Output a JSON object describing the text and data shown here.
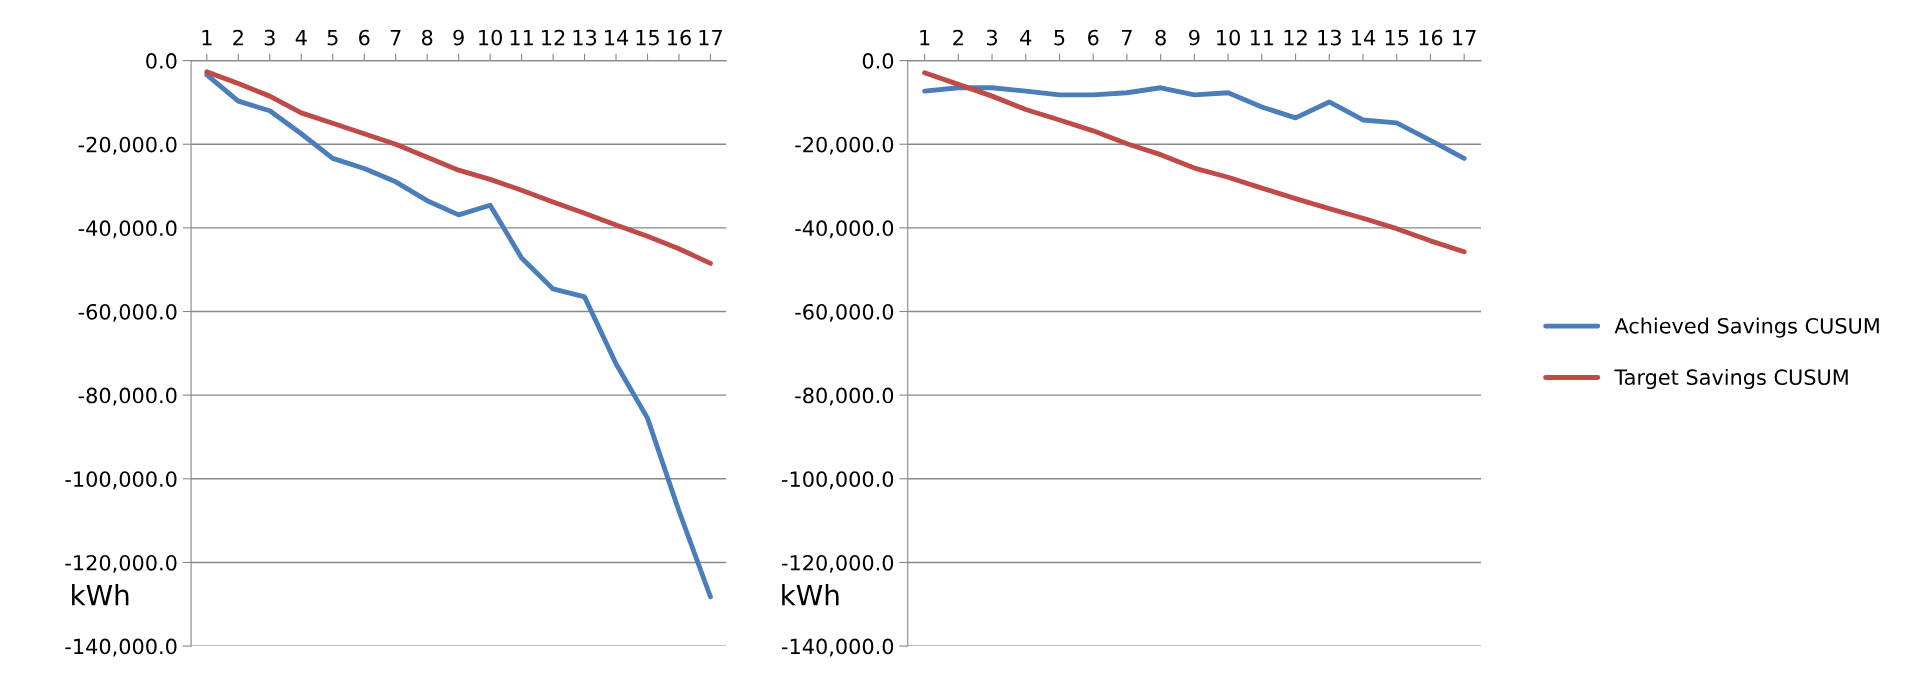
{
  "chart_data": [
    {
      "type": "line",
      "ylabel": "kWh",
      "categories": [
        "1",
        "2",
        "3",
        "4",
        "5",
        "6",
        "7",
        "8",
        "9",
        "10",
        "11",
        "12",
        "13",
        "14",
        "15",
        "16",
        "17"
      ],
      "series": [
        {
          "color": "#4a7ebb",
          "values": [
            -3400,
            -9700,
            -12000,
            -17500,
            -23400,
            -25800,
            -29000,
            -33500,
            -36900,
            -34600,
            -47200,
            -54600,
            -56500,
            -72500,
            -85500,
            -107700,
            -128200
          ]
        },
        {
          "color": "#be4b48",
          "values": [
            -2700,
            -5500,
            -8500,
            -12500,
            -15000,
            -17500,
            -20000,
            -23100,
            -26200,
            -28400,
            -31000,
            -33800,
            -36500,
            -39300,
            -42000,
            -45000,
            -48500
          ]
        }
      ],
      "ylim": [
        -140000,
        0
      ],
      "yticks": [
        {
          "value": 0,
          "label": "0.0"
        },
        {
          "value": -20000,
          "label": "-20,000.0"
        },
        {
          "value": -40000,
          "label": "-40,000.0"
        },
        {
          "value": -60000,
          "label": "-60,000.0"
        },
        {
          "value": -80000,
          "label": "-80,000.0"
        },
        {
          "value": -100000,
          "label": "-100,000.0"
        },
        {
          "value": -120000,
          "label": "-120,000.0"
        },
        {
          "value": -140000,
          "label": "-140,000.0"
        }
      ],
      "grid": "y"
    },
    {
      "type": "line",
      "ylabel": "kWh",
      "categories": [
        "1",
        "2",
        "3",
        "4",
        "5",
        "6",
        "7",
        "8",
        "9",
        "10",
        "11",
        "12",
        "13",
        "14",
        "15",
        "16",
        "17"
      ],
      "series": [
        {
          "name": "Achieved Savings CUSUM",
          "color": "#4a7ebb",
          "values": [
            -7300,
            -6500,
            -6500,
            -7300,
            -8200,
            -8200,
            -7700,
            -6500,
            -8200,
            -7700,
            -11100,
            -13700,
            -9900,
            -14200,
            -14900,
            -19100,
            -23400
          ]
        },
        {
          "name": "Target Savings CUSUM",
          "color": "#be4b48",
          "values": [
            -2900,
            -5700,
            -8500,
            -11700,
            -14200,
            -16800,
            -19900,
            -22500,
            -25700,
            -27900,
            -30500,
            -33000,
            -35400,
            -37700,
            -40200,
            -43100,
            -45700
          ]
        }
      ],
      "ylim": [
        -140000,
        0
      ],
      "yticks": [
        {
          "value": 0,
          "label": "0.0"
        },
        {
          "value": -20000,
          "label": "-20,000.0"
        },
        {
          "value": -40000,
          "label": "-40,000.0"
        },
        {
          "value": -60000,
          "label": "-60,000.0"
        },
        {
          "value": -80000,
          "label": "-80,000.0"
        },
        {
          "value": -100000,
          "label": "-100,000.0"
        },
        {
          "value": -120000,
          "label": "-120,000.0"
        },
        {
          "value": -140000,
          "label": "-140,000.0"
        }
      ],
      "grid": "y",
      "legend": "right"
    }
  ]
}
